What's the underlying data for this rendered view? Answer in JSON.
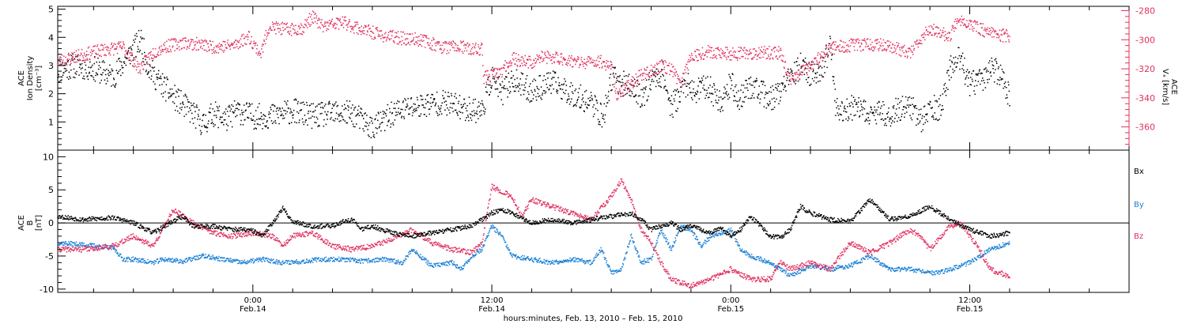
{
  "figure": {
    "xlabel": "hours:minutes, Feb. 13, 2010 – Feb. 15, 2010",
    "time_ticks": [
      {
        "t_hours": 24,
        "label1": "0:00",
        "label2": "Feb.14"
      },
      {
        "t_hours": 36,
        "label1": "12:00",
        "label2": "Feb.14"
      },
      {
        "t_hours": 48,
        "label1": "0:00",
        "label2": "Feb.15"
      },
      {
        "t_hours": 60,
        "label1": "12:00",
        "label2": "Feb.15"
      }
    ],
    "colors": {
      "axis": "#000000",
      "black": "#000000",
      "pink": "#e0305e",
      "blue": "#1a7fd4"
    }
  },
  "chart_data": [
    {
      "type": "scatter",
      "panel": "top",
      "ylabel_lines": [
        "ACE",
        "Ion Density",
        "[cm⁻³]"
      ],
      "y2label_lines": [
        "ACE",
        "Vₓ [km/s]"
      ],
      "xlim": [
        14.2,
        68.0
      ],
      "ylim": [
        0,
        5.1
      ],
      "y2lim": [
        -376,
        -277
      ],
      "y_ticks": [
        1,
        2,
        3,
        4,
        5
      ],
      "y2_ticks": [
        -280,
        -300,
        -320,
        -340,
        -360
      ],
      "series": [
        {
          "key": "density",
          "color_key": "black",
          "axis": "left",
          "t": [
            14.2,
            15.0,
            16.0,
            17.0,
            17.9,
            18.4,
            18.7,
            19.2,
            20.0,
            21.0,
            21.5,
            22.0,
            22.7,
            23.2,
            24.0,
            25.0,
            26.0,
            27.0,
            28.0,
            29.0,
            30.0,
            30.5,
            31.0,
            31.8,
            32.6,
            33.5,
            34.5,
            35.5,
            36.0,
            36.5,
            37.0,
            38.0,
            39.0,
            40.0,
            41.0,
            41.6,
            42.0,
            43.0,
            43.6,
            44.0,
            44.6,
            45.0,
            45.8,
            46.0,
            46.8,
            47.5,
            48.0,
            48.4,
            49.0,
            50.0,
            51.0,
            51.5,
            52.0,
            52.6,
            53.0,
            53.3,
            54.0,
            55.0,
            56.0,
            57.0,
            57.6,
            58.0,
            58.6,
            59.0,
            59.5,
            60.0,
            60.8,
            61.0,
            61.5,
            62.0
          ],
          "v": [
            2.8,
            3.0,
            2.9,
            2.6,
            3.5,
            3.9,
            3.0,
            2.5,
            1.9,
            1.3,
            0.9,
            1.3,
            1.1,
            1.4,
            1.2,
            1.2,
            1.4,
            1.2,
            1.3,
            1.3,
            0.8,
            1.0,
            1.3,
            1.5,
            1.6,
            1.7,
            1.5,
            1.4,
            2.6,
            2.0,
            2.5,
            2.1,
            2.4,
            2.0,
            1.7,
            1.1,
            2.6,
            2.2,
            1.9,
            2.5,
            2.7,
            1.5,
            2.4,
            2.0,
            2.3,
            1.7,
            2.4,
            1.8,
            2.3,
            1.8,
            2.5,
            3.0,
            2.7,
            2.9,
            3.7,
            1.4,
            1.5,
            1.3,
            1.3,
            1.6,
            1.0,
            1.5,
            1.5,
            2.9,
            3.3,
            2.3,
            2.6,
            3.0,
            2.7,
            1.9
          ],
          "spread": 0.45
        },
        {
          "key": "vx",
          "color_key": "pink",
          "axis": "right",
          "t": [
            14.2,
            15.0,
            16.5,
            17.5,
            18.3,
            18.9,
            19.5,
            20.5,
            21.2,
            22.0,
            23.0,
            23.8,
            24.4,
            24.8,
            25.3,
            25.6,
            26.5,
            27.0,
            27.5,
            28.5,
            29.5,
            30.5,
            31.5,
            32.5,
            33.5,
            34.5,
            35.0,
            35.5,
            35.6,
            36.5,
            37.0,
            38.0,
            38.5,
            39.5,
            40.5,
            41.5,
            42.0,
            42.3,
            43.0,
            43.5,
            44.0,
            44.5,
            45.0,
            45.5,
            46.0,
            47.0,
            48.0,
            49.5,
            50.5,
            51.0,
            52.0,
            53.0,
            53.4,
            54.0,
            55.0,
            56.0,
            57.0,
            57.5,
            58.0,
            59.0,
            59.4,
            60.0,
            61.0,
            62.0
          ],
          "v": [
            -315,
            -312,
            -307,
            -305,
            -320,
            -310,
            -305,
            -302,
            -303,
            -305,
            -304,
            -298,
            -310,
            -291,
            -292,
            -293,
            -292,
            -284,
            -291,
            -288,
            -293,
            -297,
            -299,
            -300,
            -305,
            -305,
            -307,
            -306,
            -326,
            -322,
            -313,
            -316,
            -312,
            -313,
            -316,
            -315,
            -318,
            -339,
            -330,
            -324,
            -322,
            -318,
            -320,
            -330,
            -311,
            -308,
            -310,
            -309,
            -309,
            -328,
            -318,
            -306,
            -305,
            -304,
            -303,
            -304,
            -310,
            -301,
            -292,
            -298,
            -285,
            -290,
            -295,
            -298
          ],
          "spread": 4.5
        }
      ]
    },
    {
      "type": "scatter",
      "panel": "bottom",
      "ylabel_lines": [
        "ACE",
        "B",
        "[nT]"
      ],
      "xlim": [
        14.2,
        68.0
      ],
      "ylim": [
        -10.5,
        11
      ],
      "y_ticks": [
        10,
        5,
        0,
        -5,
        -10
      ],
      "zero_line": true,
      "legend_position": "right",
      "series": [
        {
          "key": "bx",
          "name": "Bx",
          "color_key": "black",
          "t": [
            14.2,
            15.5,
            17.0,
            18.0,
            19.0,
            20.0,
            20.5,
            21.0,
            22.0,
            23.0,
            23.5,
            24.0,
            24.5,
            25.5,
            26.0,
            27.0,
            28.0,
            28.5,
            29.0,
            29.5,
            30.0,
            31.0,
            32.0,
            33.0,
            34.0,
            35.0,
            35.5,
            36.0,
            36.5,
            37.0,
            38.0,
            39.0,
            40.0,
            41.0,
            42.0,
            43.0,
            43.5,
            44.0,
            45.0,
            45.5,
            46.0,
            47.0,
            47.5,
            48.0,
            48.5,
            49.0,
            50.0,
            50.5,
            51.0,
            51.5,
            52.0,
            53.0,
            54.0,
            55.0,
            56.0,
            57.0,
            58.0,
            59.0,
            60.0,
            61.0,
            62.0
          ],
          "v": [
            1.0,
            0.5,
            0.8,
            0.0,
            -1.5,
            0.3,
            1.0,
            -0.5,
            -0.5,
            -1.0,
            -1.0,
            -1.2,
            -2.0,
            2.2,
            0.2,
            -0.5,
            -0.5,
            0.2,
            0.5,
            -1.0,
            -0.5,
            -1.5,
            -2.0,
            -1.5,
            -1.0,
            -0.5,
            0.5,
            1.5,
            2.0,
            1.5,
            0.0,
            0.5,
            0.0,
            0.5,
            1.0,
            1.5,
            0.5,
            -1.0,
            0.0,
            -1.0,
            -0.5,
            -1.5,
            -0.8,
            -2.0,
            -1.0,
            1.0,
            -2.0,
            -2.2,
            -1.0,
            2.5,
            1.5,
            0.5,
            0.2,
            3.5,
            0.5,
            1.0,
            2.5,
            0.5,
            -1.0,
            -2.0,
            -1.5
          ],
          "spread": 0.35
        },
        {
          "key": "by",
          "name": "By",
          "color_key": "blue",
          "t": [
            14.2,
            15.5,
            17.0,
            17.5,
            18.0,
            19.0,
            19.5,
            20.5,
            21.5,
            22.5,
            23.5,
            24.5,
            25.5,
            26.5,
            27.5,
            28.5,
            29.5,
            30.5,
            31.5,
            32.0,
            33.0,
            34.0,
            34.5,
            35.0,
            35.5,
            36.0,
            36.5,
            37.0,
            38.0,
            39.0,
            40.0,
            41.0,
            41.5,
            42.0,
            42.5,
            43.0,
            43.5,
            44.0,
            44.5,
            45.0,
            45.5,
            46.0,
            46.5,
            47.0,
            48.0,
            48.5,
            49.0,
            50.0,
            51.0,
            52.0,
            53.0,
            54.0,
            55.0,
            56.0,
            57.0,
            58.0,
            58.5,
            59.0,
            60.0,
            61.0,
            62.0
          ],
          "v": [
            -3.0,
            -3.3,
            -3.8,
            -5.5,
            -5.5,
            -6.0,
            -5.5,
            -5.8,
            -5.0,
            -5.5,
            -6.0,
            -5.5,
            -6.0,
            -5.8,
            -5.5,
            -5.5,
            -5.8,
            -5.5,
            -6.0,
            -4.0,
            -6.5,
            -6.0,
            -7.0,
            -5.0,
            -4.0,
            -0.5,
            -2.0,
            -5.0,
            -5.5,
            -6.0,
            -5.5,
            -6.0,
            -4.0,
            -7.5,
            -7.0,
            -2.0,
            -6.0,
            -5.5,
            -1.0,
            -4.0,
            -0.5,
            -1.0,
            -3.5,
            -2.0,
            -1.0,
            -4.0,
            -5.0,
            -6.0,
            -8.0,
            -6.5,
            -7.0,
            -6.5,
            -5.0,
            -7.0,
            -7.0,
            -7.5,
            -7.5,
            -7.0,
            -6.0,
            -4.0,
            -3.0
          ],
          "spread": 0.35
        },
        {
          "key": "bz",
          "name": "Bz",
          "color_key": "pink",
          "t": [
            14.2,
            15.5,
            17.0,
            18.0,
            19.0,
            20.0,
            20.5,
            21.0,
            22.0,
            23.0,
            24.0,
            25.0,
            25.5,
            26.0,
            27.0,
            28.0,
            29.0,
            30.0,
            31.0,
            32.0,
            33.0,
            34.0,
            35.0,
            35.5,
            36.0,
            37.0,
            37.5,
            38.0,
            39.0,
            40.0,
            41.0,
            42.0,
            42.5,
            43.0,
            43.5,
            44.0,
            44.5,
            45.0,
            46.0,
            47.0,
            48.0,
            49.0,
            50.0,
            50.5,
            51.0,
            52.0,
            53.0,
            54.0,
            55.0,
            56.0,
            57.0,
            57.5,
            58.0,
            59.0,
            59.5,
            60.0,
            60.5,
            61.0,
            62.0
          ],
          "v": [
            -4.0,
            -4.0,
            -3.5,
            -2.0,
            -3.5,
            2.0,
            1.0,
            0.0,
            -1.5,
            -2.0,
            -1.5,
            -2.0,
            -3.5,
            -2.0,
            -1.5,
            -3.5,
            -4.0,
            -3.5,
            -2.5,
            -1.0,
            -3.0,
            -4.0,
            -4.5,
            -3.0,
            5.5,
            4.0,
            1.0,
            3.5,
            2.5,
            1.5,
            0.5,
            4.0,
            6.5,
            3.5,
            -1.0,
            -3.0,
            -6.0,
            -8.5,
            -9.5,
            -8.5,
            -7.0,
            -8.5,
            -8.5,
            -6.0,
            -7.0,
            -6.0,
            -7.0,
            -3.0,
            -4.5,
            -3.0,
            -1.0,
            -2.0,
            -4.0,
            -0.5,
            0.0,
            -2.0,
            -4.0,
            -7.0,
            -8.0
          ],
          "spread": 0.4
        }
      ]
    }
  ]
}
